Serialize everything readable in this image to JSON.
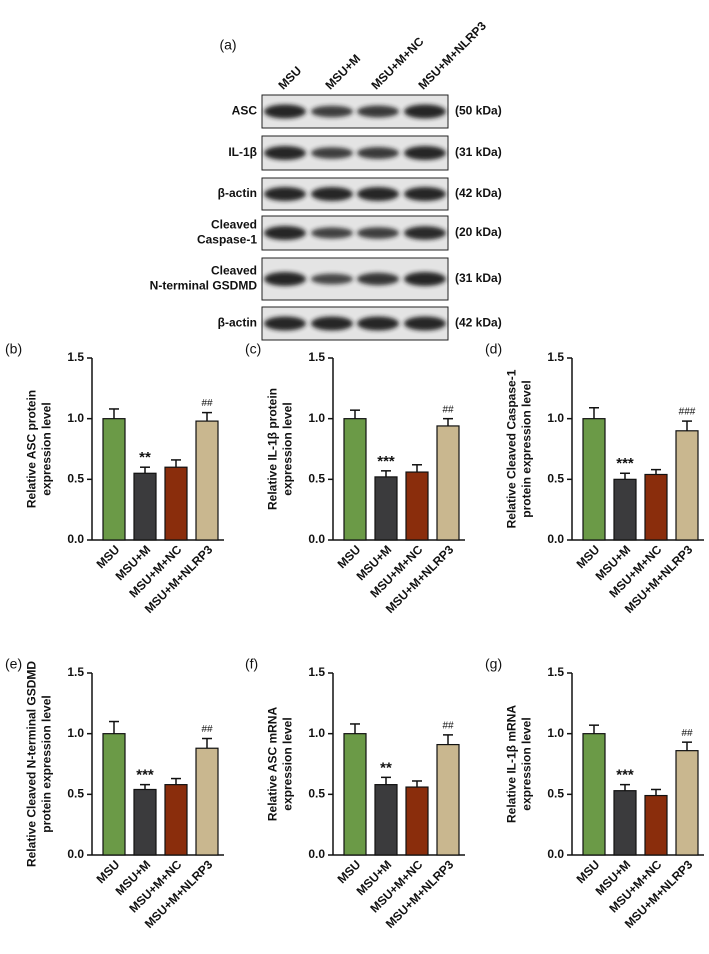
{
  "blot": {
    "panel": "(a)",
    "lanes": [
      "MSU",
      "MSU+M",
      "MSU+M+NC",
      "MSU+M+NLRP3"
    ],
    "rows": [
      {
        "label": [
          "ASC"
        ],
        "size": "(50 kDa)"
      },
      {
        "label": [
          "IL-1β"
        ],
        "size": "(31 kDa)"
      },
      {
        "label": [
          "β-actin"
        ],
        "size": "(42 kDa)"
      },
      {
        "label": [
          "Cleaved",
          "Caspase-1"
        ],
        "size": "(20 kDa)"
      },
      {
        "label": [
          "Cleaved",
          "N-terminal GSDMD"
        ],
        "size": "(31 kDa)"
      },
      {
        "label": [
          "β-actin"
        ],
        "size": "(42 kDa)"
      }
    ]
  },
  "chart_data": [
    {
      "type": "bar",
      "panel": "(b)",
      "ylabel": [
        "Relative ASC protein",
        "expression level"
      ],
      "categories": [
        "MSU",
        "MSU+M",
        "MSU+M+NC",
        "MSU+M+NLRP3"
      ],
      "values": [
        1.0,
        0.55,
        0.6,
        0.98
      ],
      "errors": [
        0.08,
        0.05,
        0.06,
        0.07
      ],
      "colors": [
        "#6b9a47",
        "#3b3b3d",
        "#8a2d0c",
        "#c9b78f"
      ],
      "ylim": [
        0,
        1.5
      ],
      "yticks": [
        {
          "value": 0,
          "label": "0.0"
        },
        0.5,
        {
          "value": 1,
          "label": "1.0"
        },
        1.5
      ],
      "annotations": [
        {
          "category": "MSU+M",
          "text": "**"
        },
        {
          "category": "MSU+M+NLRP3",
          "text": "##"
        }
      ]
    },
    {
      "type": "bar",
      "panel": "(c)",
      "ylabel": [
        "Relative IL-1β protein",
        "expression level"
      ],
      "categories": [
        "MSU",
        "MSU+M",
        "MSU+M+NC",
        "MSU+M+NLRP3"
      ],
      "values": [
        1.0,
        0.52,
        0.56,
        0.94
      ],
      "errors": [
        0.07,
        0.05,
        0.06,
        0.06
      ],
      "colors": [
        "#6b9a47",
        "#3b3b3d",
        "#8a2d0c",
        "#c9b78f"
      ],
      "ylim": [
        0,
        1.5
      ],
      "yticks": [
        {
          "value": 0,
          "label": "0.0"
        },
        0.5,
        {
          "value": 1,
          "label": "1.0"
        },
        1.5
      ],
      "annotations": [
        {
          "category": "MSU+M",
          "text": "***"
        },
        {
          "category": "MSU+M+NLRP3",
          "text": "##"
        }
      ]
    },
    {
      "type": "bar",
      "panel": "(d)",
      "ylabel": [
        "Relative Cleaved Caspase-1",
        "protein expression level"
      ],
      "categories": [
        "MSU",
        "MSU+M",
        "MSU+M+NC",
        "MSU+M+NLRP3"
      ],
      "values": [
        1.0,
        0.5,
        0.54,
        0.9
      ],
      "errors": [
        0.09,
        0.05,
        0.04,
        0.08
      ],
      "colors": [
        "#6b9a47",
        "#3b3b3d",
        "#8a2d0c",
        "#c9b78f"
      ],
      "ylim": [
        0,
        1.5
      ],
      "yticks": [
        {
          "value": 0,
          "label": "0.0"
        },
        0.5,
        {
          "value": 1,
          "label": "1.0"
        },
        1.5
      ],
      "annotations": [
        {
          "category": "MSU+M",
          "text": "***"
        },
        {
          "category": "MSU+M+NLRP3",
          "text": "###"
        }
      ]
    },
    {
      "type": "bar",
      "panel": "(e)",
      "ylabel": [
        "Relative Cleaved N-terminal GSDMD",
        "protein expression level"
      ],
      "categories": [
        "MSU",
        "MSU+M",
        "MSU+M+NC",
        "MSU+M+NLRP3"
      ],
      "values": [
        1.0,
        0.54,
        0.58,
        0.88
      ],
      "errors": [
        0.1,
        0.04,
        0.05,
        0.08
      ],
      "colors": [
        "#6b9a47",
        "#3b3b3d",
        "#8a2d0c",
        "#c9b78f"
      ],
      "ylim": [
        0,
        1.5
      ],
      "yticks": [
        {
          "value": 0,
          "label": "0.0"
        },
        0.5,
        {
          "value": 1,
          "label": "1.0"
        },
        1.5
      ],
      "annotations": [
        {
          "category": "MSU+M",
          "text": "***"
        },
        {
          "category": "MSU+M+NLRP3",
          "text": "##"
        }
      ]
    },
    {
      "type": "bar",
      "panel": "(f)",
      "ylabel": [
        "Relative ASC mRNA",
        "expression level"
      ],
      "categories": [
        "MSU",
        "MSU+M",
        "MSU+M+NC",
        "MSU+M+NLRP3"
      ],
      "values": [
        1.0,
        0.58,
        0.56,
        0.91
      ],
      "errors": [
        0.08,
        0.06,
        0.05,
        0.08
      ],
      "colors": [
        "#6b9a47",
        "#3b3b3d",
        "#8a2d0c",
        "#c9b78f"
      ],
      "ylim": [
        0,
        1.5
      ],
      "yticks": [
        {
          "value": 0,
          "label": "0.0"
        },
        0.5,
        {
          "value": 1,
          "label": "1.0"
        },
        1.5
      ],
      "annotations": [
        {
          "category": "MSU+M",
          "text": "**"
        },
        {
          "category": "MSU+M+NLRP3",
          "text": "##"
        }
      ]
    },
    {
      "type": "bar",
      "panel": "(g)",
      "ylabel": [
        "Relative IL-1β mRNA",
        "expression level"
      ],
      "categories": [
        "MSU",
        "MSU+M",
        "MSU+M+NC",
        "MSU+M+NLRP3"
      ],
      "values": [
        1.0,
        0.53,
        0.49,
        0.86
      ],
      "errors": [
        0.07,
        0.05,
        0.05,
        0.07
      ],
      "colors": [
        "#6b9a47",
        "#3b3b3d",
        "#8a2d0c",
        "#c9b78f"
      ],
      "ylim": [
        0,
        1.5
      ],
      "yticks": [
        {
          "value": 0,
          "label": "0.0"
        },
        0.5,
        {
          "value": 1,
          "label": "1.0"
        },
        1.5
      ],
      "annotations": [
        {
          "category": "MSU+M",
          "text": "***"
        },
        {
          "category": "MSU+M+NLRP3",
          "text": "##"
        }
      ]
    }
  ]
}
